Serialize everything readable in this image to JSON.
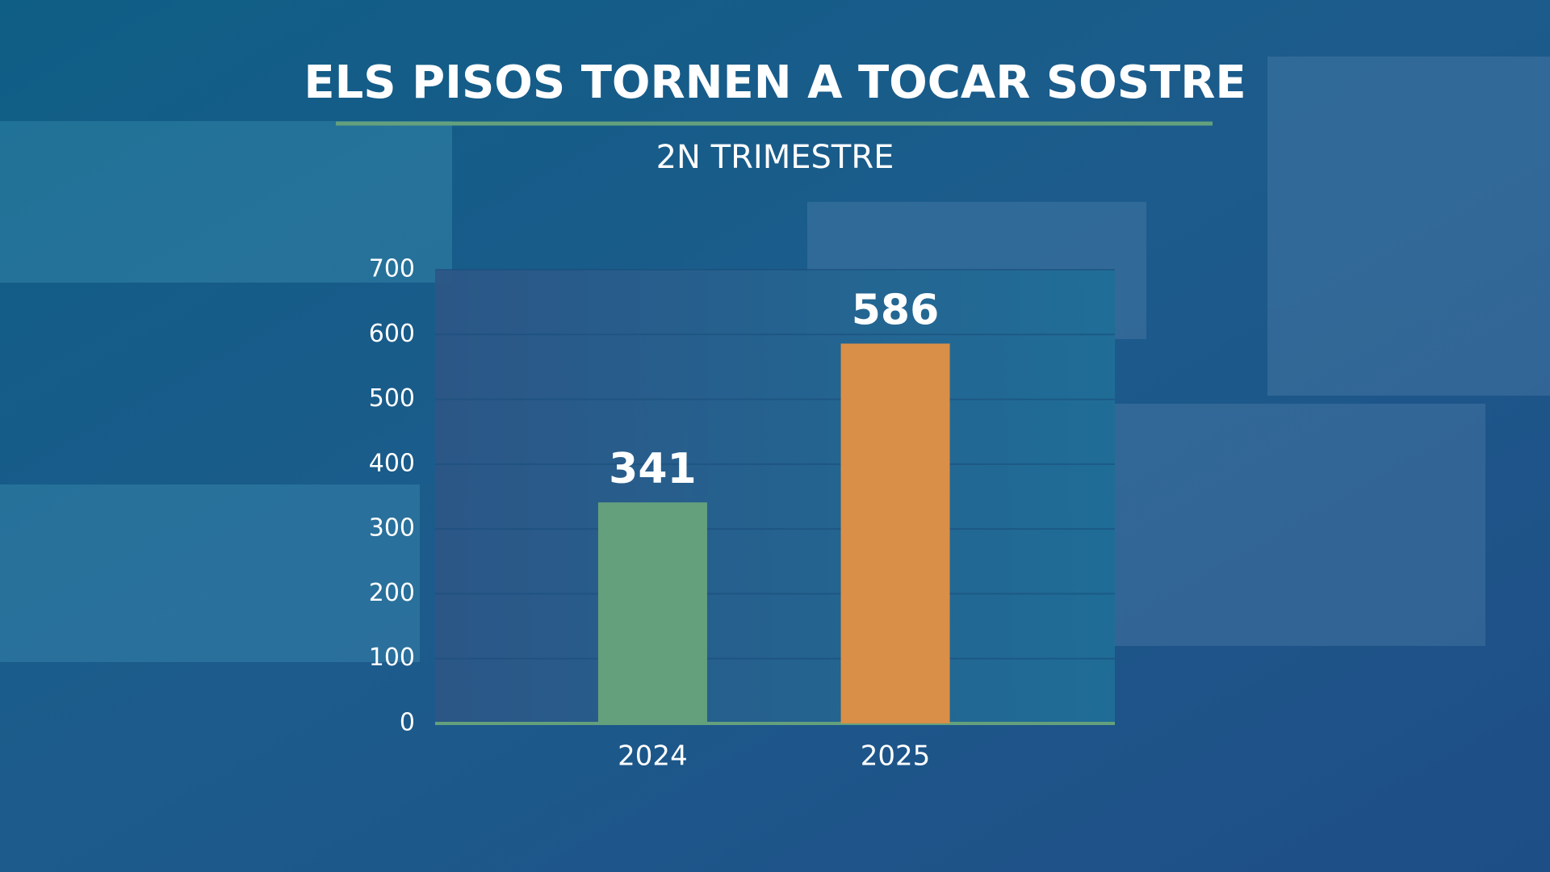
{
  "chart_data": {
    "type": "bar",
    "title": "ELS PISOS TORNEN A TOCAR SOSTRE",
    "subtitle": "2N TRIMESTRE",
    "categories": [
      "2024",
      "2025"
    ],
    "values": [
      341,
      586
    ],
    "colors": [
      "#64a07c",
      "#d98f48"
    ],
    "ylim": [
      0,
      700
    ],
    "yticks": [
      0,
      100,
      200,
      300,
      400,
      500,
      600,
      700
    ],
    "grid": true
  }
}
